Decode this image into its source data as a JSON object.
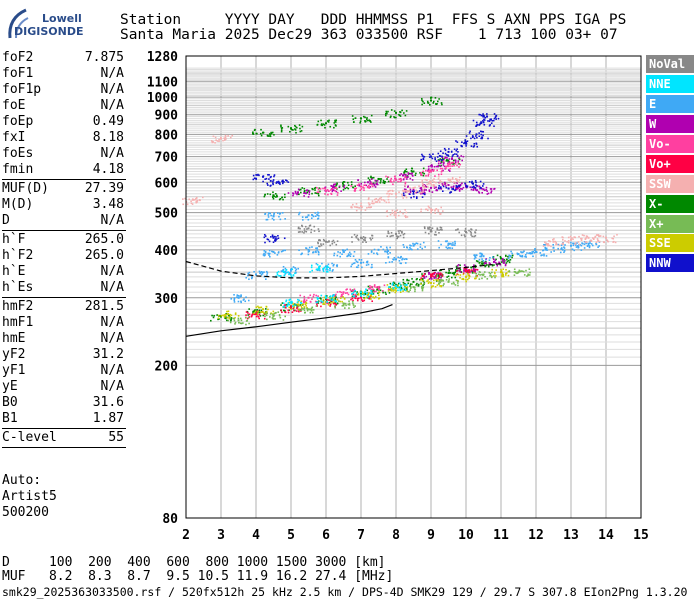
{
  "logo": {
    "line1": "Lowell",
    "line2": "DIGISONDE"
  },
  "header": {
    "line1": "Station     YYYY DAY   DDD HHMMSS P1  FFS S AXN PPS IGA PS",
    "line2": "Santa Maria 2025 Dec29 363 033500 RSF    1 713 100 03+ 07"
  },
  "params": {
    "group1": [
      {
        "k": "foF2",
        "v": "7.875"
      },
      {
        "k": "foF1",
        "v": "N/A"
      },
      {
        "k": "foF1p",
        "v": "N/A"
      },
      {
        "k": "foE",
        "v": "N/A"
      },
      {
        "k": "foEp",
        "v": "0.49"
      },
      {
        "k": "fxI",
        "v": "8.18"
      },
      {
        "k": "foEs",
        "v": "N/A"
      },
      {
        "k": "fmin",
        "v": "4.18"
      }
    ],
    "group2": [
      {
        "k": "MUF(D)",
        "v": "27.39"
      },
      {
        "k": "M(D)",
        "v": "3.48"
      },
      {
        "k": "D",
        "v": "N/A"
      }
    ],
    "group3": [
      {
        "k": "h`F",
        "v": "265.0"
      },
      {
        "k": "h`F2",
        "v": "265.0"
      },
      {
        "k": "h`E",
        "v": "N/A"
      },
      {
        "k": "h`Es",
        "v": "N/A"
      }
    ],
    "group4": [
      {
        "k": "hmF2",
        "v": "281.5"
      },
      {
        "k": "hmF1",
        "v": "N/A"
      },
      {
        "k": "hmE",
        "v": "N/A"
      },
      {
        "k": "yF2",
        "v": "31.2"
      },
      {
        "k": "yF1",
        "v": "N/A"
      },
      {
        "k": "yE",
        "v": "N/A"
      },
      {
        "k": "B0",
        "v": "31.6"
      },
      {
        "k": "B1",
        "v": "1.87"
      }
    ],
    "group5": [
      {
        "k": "C-level",
        "v": "55"
      }
    ]
  },
  "auto_block": {
    "line1": "Auto:",
    "line2": "Artist5",
    "line3": "500200"
  },
  "legend": [
    {
      "label": "NoVal",
      "bg": "#888888",
      "fg": "#ffffff"
    },
    {
      "label": "NNE",
      "bg": "#00e5ff",
      "fg": "#ffffff"
    },
    {
      "label": "E",
      "bg": "#3fa9f5",
      "fg": "#ffffff"
    },
    {
      "label": "W",
      "bg": "#b000b0",
      "fg": "#ffffff"
    },
    {
      "label": "Vo-",
      "bg": "#ff3fa0",
      "fg": "#ffffff"
    },
    {
      "label": "Vo+",
      "bg": "#ff0044",
      "fg": "#ffffff"
    },
    {
      "label": "SSW",
      "bg": "#f5b0b0",
      "fg": "#ffffff"
    },
    {
      "label": "X-",
      "bg": "#008800",
      "fg": "#ffffff"
    },
    {
      "label": "X+",
      "bg": "#77bb55",
      "fg": "#ffffff"
    },
    {
      "label": "SSE",
      "bg": "#cccc00",
      "fg": "#ffffff"
    },
    {
      "label": "NNW",
      "bg": "#1010cc",
      "fg": "#ffffff"
    }
  ],
  "bottom": {
    "d_line": "D     100  200  400  600  800 1000 1500 3000 [km]",
    "muf_line": "MUF   8.2  8.3  8.7  9.5 10.5 11.9 16.2 27.4 [MHz]"
  },
  "footer": "smk29_2025363033500.rsf / 520fx512h 25 kHz 2.5 km / DPS-4D SMK29 129 / 29.7 S 307.8 EIon2Png 1.3.20",
  "chart_data": {
    "type": "scatter",
    "title": "",
    "xlabel": "",
    "ylabel": "",
    "x_ticks": [
      2,
      3,
      4,
      5,
      6,
      7,
      8,
      9,
      10,
      11,
      12,
      13,
      14,
      15
    ],
    "y_ticks": [
      200,
      300,
      400,
      500,
      600,
      700,
      800,
      900,
      1000,
      1100
    ],
    "y_top_label": "1280",
    "y_bottom_label": "80",
    "xlim": [
      2,
      15
    ],
    "ylim": [
      80,
      1280
    ],
    "y_scale": "log",
    "grid": true,
    "legend_position": "right",
    "series": [
      {
        "legend": "X-",
        "color": "#008800",
        "points": [
          [
            3.0,
            268
          ],
          [
            4.0,
            276
          ],
          [
            5.0,
            285
          ],
          [
            6.0,
            298
          ],
          [
            7.0,
            308
          ],
          [
            7.5,
            315
          ],
          [
            8.0,
            324
          ],
          [
            8.5,
            330
          ],
          [
            9.0,
            340
          ],
          [
            9.5,
            348
          ],
          [
            10.0,
            358
          ],
          [
            10.5,
            368
          ],
          [
            11.0,
            380
          ],
          [
            4.5,
            555
          ],
          [
            5.5,
            570
          ],
          [
            6.5,
            590
          ],
          [
            7.5,
            612
          ],
          [
            8.5,
            640
          ],
          [
            9.5,
            680
          ],
          [
            4.2,
            808
          ],
          [
            5.0,
            830
          ],
          [
            6.0,
            855
          ],
          [
            7.0,
            880
          ],
          [
            8.0,
            910
          ],
          [
            9.0,
            980
          ]
        ]
      },
      {
        "legend": "W",
        "color": "#b000b0",
        "points": [
          [
            5.2,
            565
          ],
          [
            6.2,
            582
          ],
          [
            7.2,
            600
          ],
          [
            8.2,
            625
          ],
          [
            9.2,
            660
          ],
          [
            9.6,
            690
          ],
          [
            8.5,
            575
          ],
          [
            9.0,
            580
          ],
          [
            9.5,
            590
          ],
          [
            10.0,
            585
          ],
          [
            10.5,
            575
          ],
          [
            9.0,
            345
          ],
          [
            10.0,
            360
          ],
          [
            10.8,
            372
          ]
        ]
      },
      {
        "legend": "NNW",
        "color": "#1010cc",
        "points": [
          [
            9.0,
            700
          ],
          [
            9.5,
            720
          ],
          [
            10.0,
            760
          ],
          [
            10.3,
            800
          ],
          [
            10.5,
            860
          ],
          [
            10.6,
            890
          ],
          [
            8.5,
            560
          ],
          [
            9.5,
            578
          ],
          [
            10.2,
            595
          ],
          [
            4.2,
            620
          ],
          [
            4.6,
            600
          ],
          [
            4.5,
            430
          ]
        ]
      },
      {
        "legend": "E",
        "color": "#3fa9f5",
        "points": [
          [
            4.5,
            395
          ],
          [
            5.5,
            400
          ],
          [
            6.5,
            395
          ],
          [
            7.5,
            400
          ],
          [
            8.5,
            410
          ],
          [
            9.5,
            415
          ],
          [
            10.5,
            385
          ],
          [
            11.5,
            390
          ],
          [
            12.0,
            395
          ],
          [
            12.5,
            405
          ],
          [
            13.0,
            410
          ],
          [
            13.5,
            415
          ],
          [
            4.0,
            345
          ],
          [
            5.0,
            355
          ],
          [
            6.0,
            362
          ],
          [
            7.0,
            370
          ],
          [
            8.0,
            378
          ],
          [
            3.5,
            300
          ],
          [
            4.5,
            490
          ],
          [
            5.5,
            492
          ]
        ]
      },
      {
        "legend": "SSW",
        "color": "#f5b0b0",
        "points": [
          [
            7.0,
            520
          ],
          [
            7.5,
            540
          ],
          [
            8.0,
            560
          ],
          [
            8.5,
            580
          ],
          [
            9.0,
            600
          ],
          [
            9.5,
            610
          ],
          [
            8.0,
            500
          ],
          [
            9.0,
            510
          ],
          [
            12.5,
            420
          ],
          [
            13.0,
            425
          ],
          [
            13.5,
            430
          ],
          [
            14.0,
            430
          ],
          [
            3.0,
            780
          ],
          [
            2.2,
            540
          ]
        ]
      },
      {
        "legend": "Vo-",
        "color": "#ff3fa0",
        "points": [
          [
            6.0,
            570
          ],
          [
            7.0,
            585
          ],
          [
            8.0,
            610
          ],
          [
            9.0,
            640
          ],
          [
            9.5,
            670
          ],
          [
            5.5,
            300
          ],
          [
            6.5,
            310
          ],
          [
            7.5,
            318
          ]
        ]
      },
      {
        "legend": "Vo+",
        "color": "#ff0044",
        "points": [
          [
            4.0,
            272
          ],
          [
            5.0,
            282
          ],
          [
            6.0,
            292
          ],
          [
            7.0,
            302
          ],
          [
            9.0,
            345
          ],
          [
            10.0,
            352
          ]
        ]
      },
      {
        "legend": "SSE",
        "color": "#cccc00",
        "points": [
          [
            3.2,
            272
          ],
          [
            4.2,
            280
          ],
          [
            5.2,
            288
          ],
          [
            6.2,
            296
          ],
          [
            7.2,
            306
          ],
          [
            8.0,
            318
          ],
          [
            9.0,
            328
          ],
          [
            10.0,
            340
          ],
          [
            11.0,
            350
          ]
        ]
      },
      {
        "legend": "X+",
        "color": "#77bb55",
        "points": [
          [
            3.5,
            262
          ],
          [
            4.5,
            270
          ],
          [
            5.5,
            280
          ],
          [
            6.5,
            290
          ],
          [
            8.5,
            320
          ],
          [
            9.5,
            330
          ],
          [
            10.5,
            345
          ],
          [
            11.5,
            350
          ]
        ]
      },
      {
        "legend": "NNE",
        "color": "#00e5ff",
        "points": [
          [
            5.0,
            292
          ],
          [
            6.0,
            300
          ],
          [
            7.0,
            310
          ],
          [
            8.0,
            322
          ],
          [
            4.8,
            350
          ],
          [
            5.8,
            360
          ]
        ]
      },
      {
        "legend": "NoVal",
        "color": "#888888",
        "points": [
          [
            6.0,
            420
          ],
          [
            7.0,
            430
          ],
          [
            8.0,
            440
          ],
          [
            9.0,
            450
          ],
          [
            10.0,
            445
          ],
          [
            5.5,
            455
          ]
        ]
      }
    ],
    "trace_curves": [
      {
        "color": "#000000",
        "style": "solid",
        "points": [
          [
            2.0,
            238
          ],
          [
            3.0,
            246
          ],
          [
            4.0,
            252
          ],
          [
            5.0,
            259
          ],
          [
            6.0,
            266
          ],
          [
            7.0,
            274
          ],
          [
            7.6,
            281
          ],
          [
            7.9,
            288
          ]
        ]
      },
      {
        "color": "#000000",
        "style": "dashed",
        "points": [
          [
            2.0,
            373
          ],
          [
            3.0,
            352
          ],
          [
            4.0,
            342
          ],
          [
            5.0,
            338
          ],
          [
            6.0,
            338
          ],
          [
            7.0,
            341
          ],
          [
            8.0,
            347
          ],
          [
            9.0,
            353
          ],
          [
            10.0,
            360
          ],
          [
            11.0,
            368
          ]
        ]
      }
    ]
  }
}
